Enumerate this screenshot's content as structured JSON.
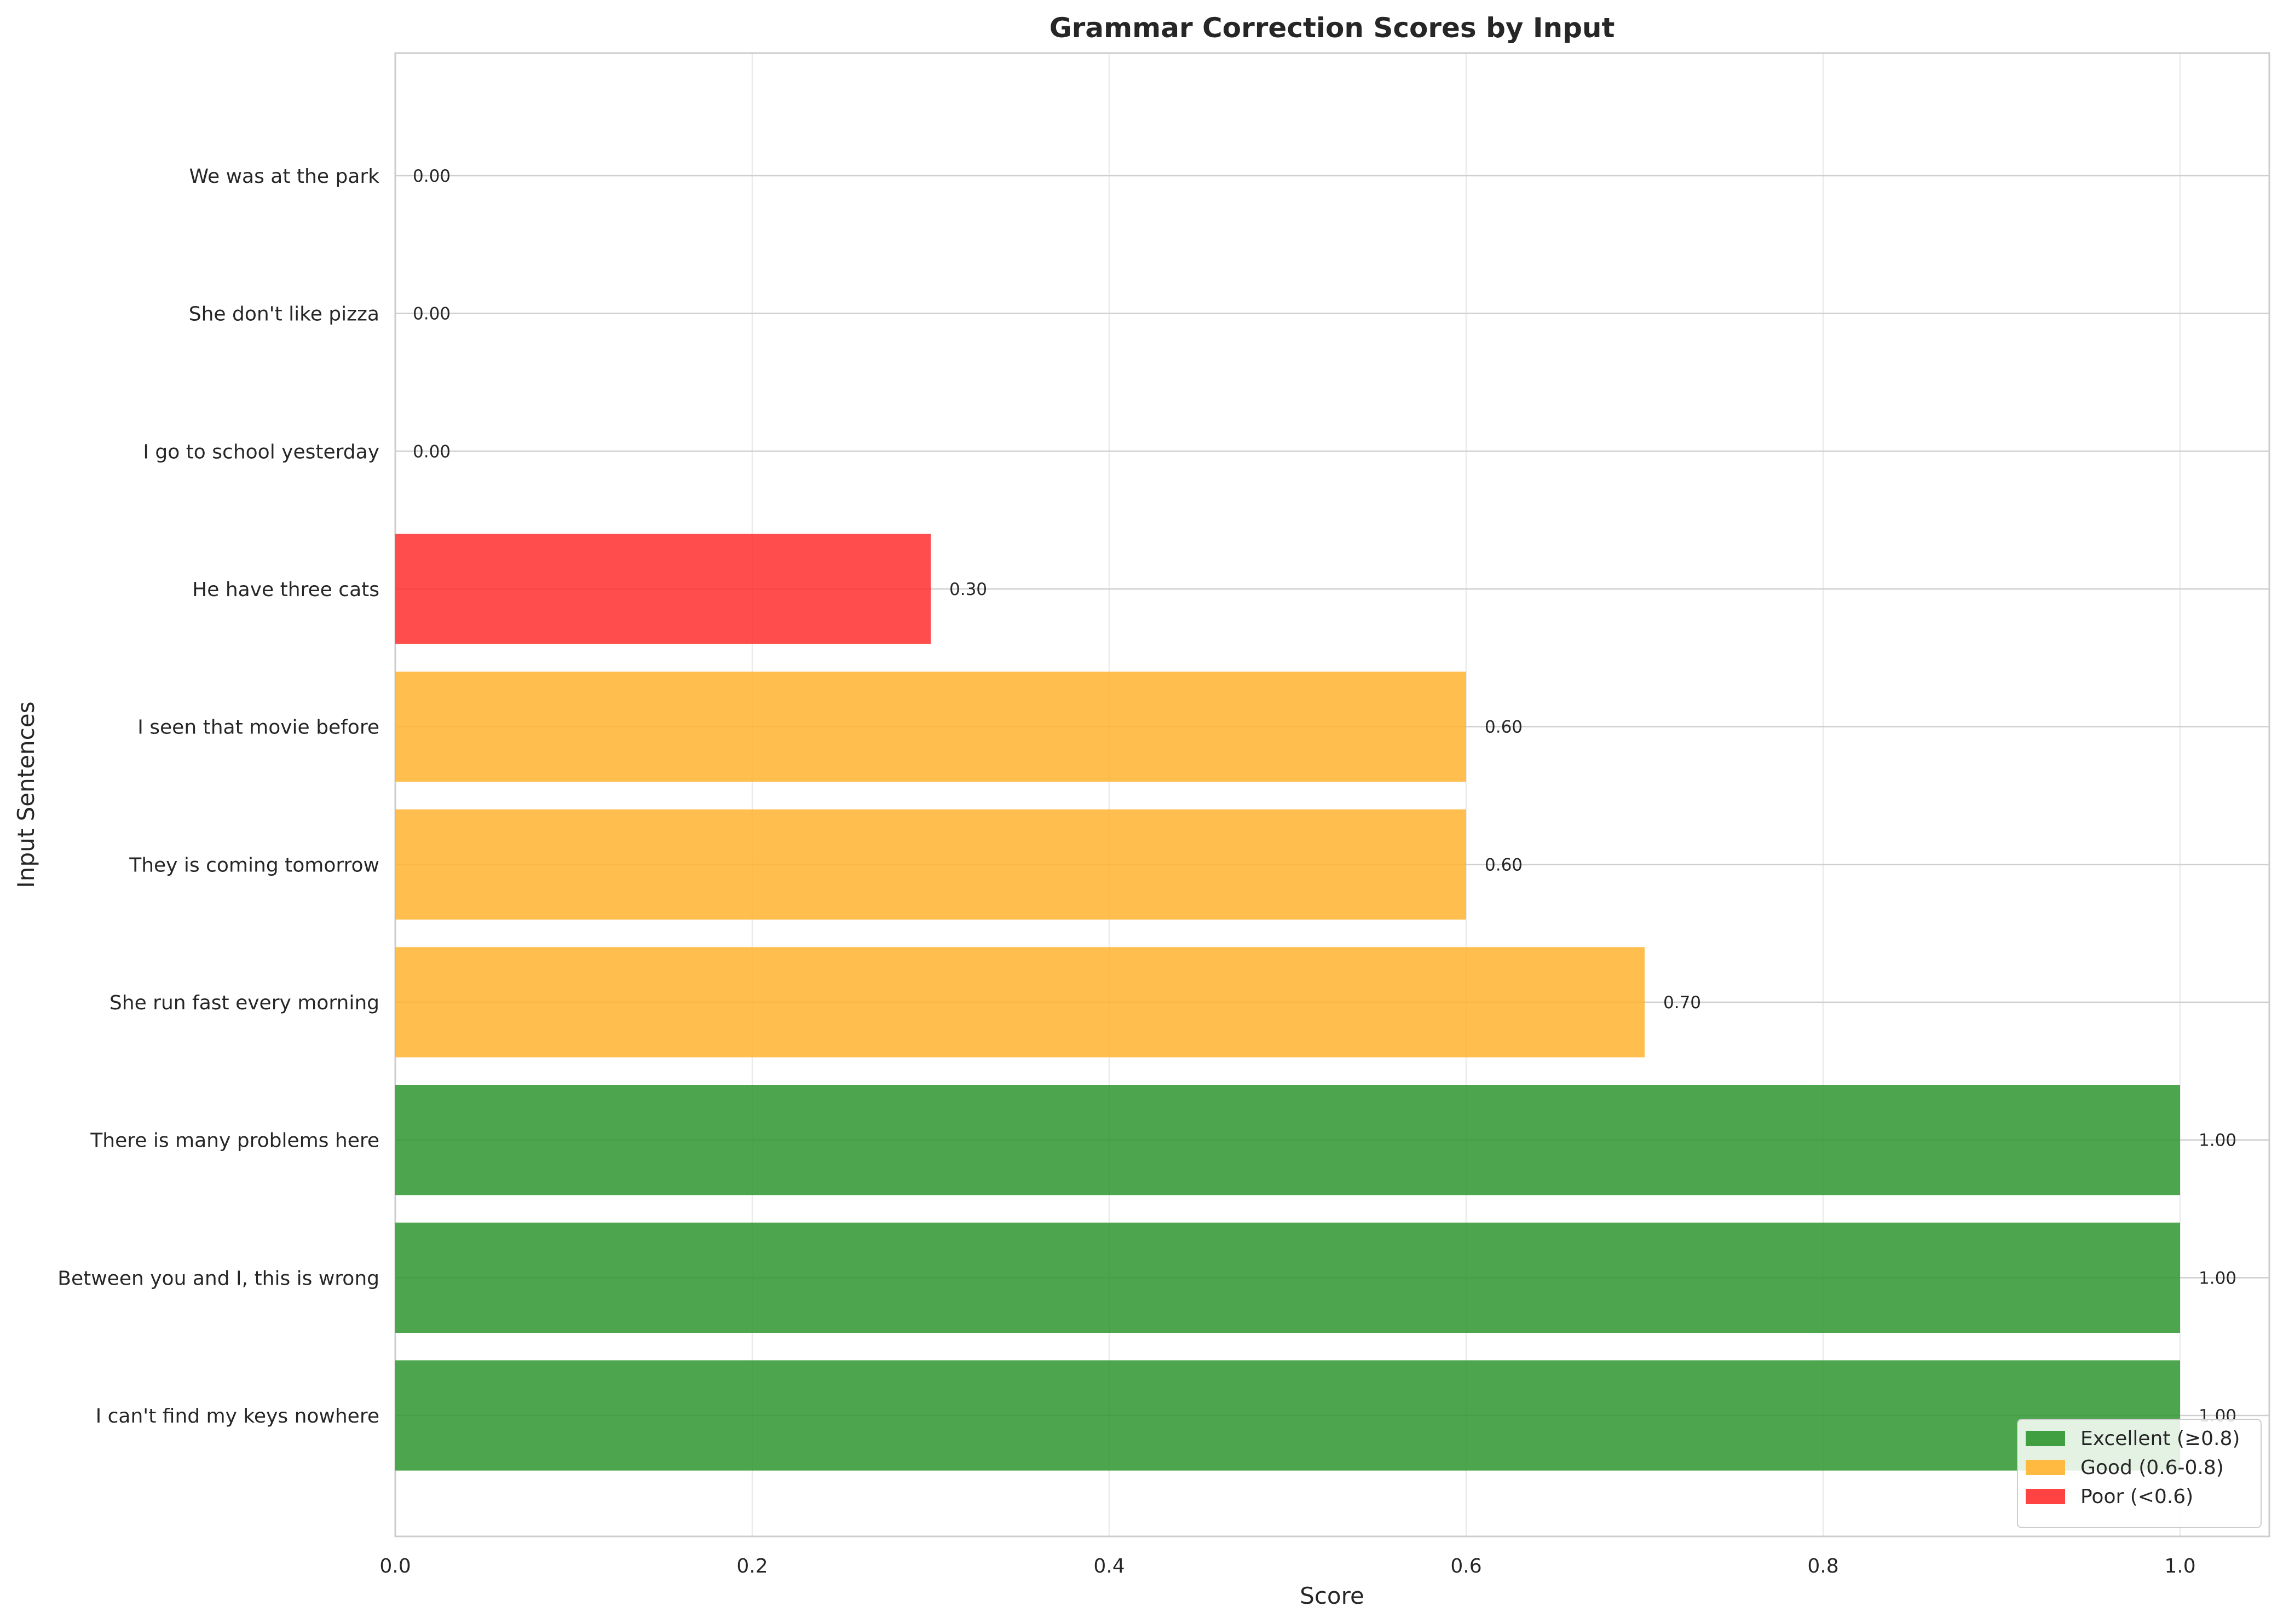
{
  "chart_data": {
    "type": "bar",
    "orientation": "horizontal",
    "title": "Grammar Correction Scores by Input",
    "xlabel": "Score",
    "ylabel": "Input Sentences",
    "xlim": [
      0,
      1.05
    ],
    "xticks": [
      "0.0",
      "0.2",
      "0.4",
      "0.6",
      "0.8",
      "1.0"
    ],
    "xtick_values": [
      0,
      0.2,
      0.4,
      0.6,
      0.8,
      1.0
    ],
    "grid": true,
    "legend_position": "bottom-right",
    "categories": [
      "I can't find my keys nowhere",
      "Between you and I, this is wrong",
      "There is many problems here",
      "She run fast every morning",
      "They is coming tomorrow",
      "I seen that movie before",
      "He have three cats",
      "I go to school yesterday",
      "She don't like pizza",
      "We was at the park"
    ],
    "values": [
      1.0,
      1.0,
      1.0,
      0.7,
      0.6,
      0.6,
      0.3,
      0.0,
      0.0,
      0.0
    ],
    "value_labels": [
      "1.00",
      "1.00",
      "1.00",
      "0.70",
      "0.60",
      "0.60",
      "0.30",
      "0.00",
      "0.00",
      "0.00"
    ],
    "legend": [
      {
        "label": "Excellent (≥0.8)",
        "color": "#2e962e"
      },
      {
        "label": "Good (0.6-0.8)",
        "color": "#ffb32e"
      },
      {
        "label": "Poor (<0.6)",
        "color": "#ff2e2e"
      }
    ],
    "colors": {
      "excellent": "#2e962e",
      "good": "#ffb32e",
      "poor": "#ff2e2e"
    }
  }
}
